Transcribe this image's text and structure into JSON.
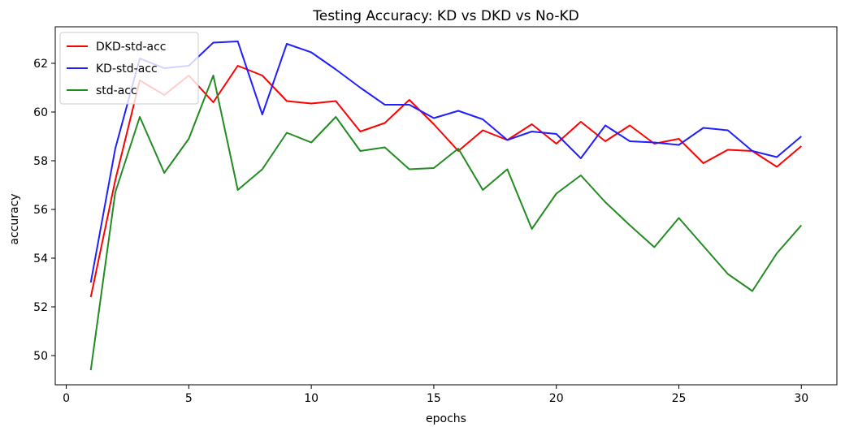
{
  "chart_data": {
    "type": "line",
    "title": "Testing Accuracy: KD vs DKD vs No-KD",
    "xlabel": "epochs",
    "ylabel": "accuracy",
    "xlim": [
      -0.45,
      31.45
    ],
    "ylim": [
      48.8,
      63.5
    ],
    "xticks": [
      0,
      5,
      10,
      15,
      20,
      25,
      30
    ],
    "yticks": [
      50,
      52,
      54,
      56,
      58,
      60,
      62
    ],
    "grid": false,
    "legend_position": "top-left",
    "x": [
      1,
      2,
      3,
      4,
      5,
      6,
      7,
      8,
      9,
      10,
      11,
      12,
      13,
      14,
      15,
      16,
      17,
      18,
      19,
      20,
      21,
      22,
      23,
      24,
      25,
      26,
      27,
      28,
      29,
      30
    ],
    "series": [
      {
        "name": "DKD-std-acc",
        "color": "#ff0000",
        "values": [
          52.4,
          57.2,
          61.3,
          60.7,
          61.5,
          60.4,
          61.9,
          61.5,
          60.45,
          60.35,
          60.45,
          59.2,
          59.55,
          60.5,
          59.5,
          58.4,
          59.25,
          58.85,
          59.5,
          58.7,
          59.6,
          58.8,
          59.45,
          58.7,
          58.9,
          57.9,
          58.45,
          58.4,
          57.75,
          58.6
        ]
      },
      {
        "name": "KD-std-acc",
        "color": "#1f1fff",
        "values": [
          53.0,
          58.5,
          62.2,
          61.8,
          61.9,
          62.85,
          62.9,
          59.9,
          62.8,
          62.45,
          61.75,
          61.0,
          60.3,
          60.3,
          59.75,
          60.05,
          59.7,
          58.85,
          59.2,
          59.1,
          58.1,
          59.45,
          58.8,
          58.75,
          58.65,
          59.35,
          59.25,
          58.4,
          58.15,
          59.0
        ]
      },
      {
        "name": "std-acc",
        "color": "#228b22",
        "values": [
          49.4,
          56.7,
          59.8,
          57.5,
          58.9,
          61.5,
          56.8,
          57.65,
          59.15,
          58.75,
          59.8,
          58.4,
          58.55,
          57.65,
          57.7,
          58.5,
          56.8,
          57.65,
          55.2,
          56.65,
          57.4,
          56.3,
          55.35,
          54.45,
          55.65,
          54.5,
          53.35,
          52.65,
          54.2,
          55.35
        ]
      }
    ]
  }
}
